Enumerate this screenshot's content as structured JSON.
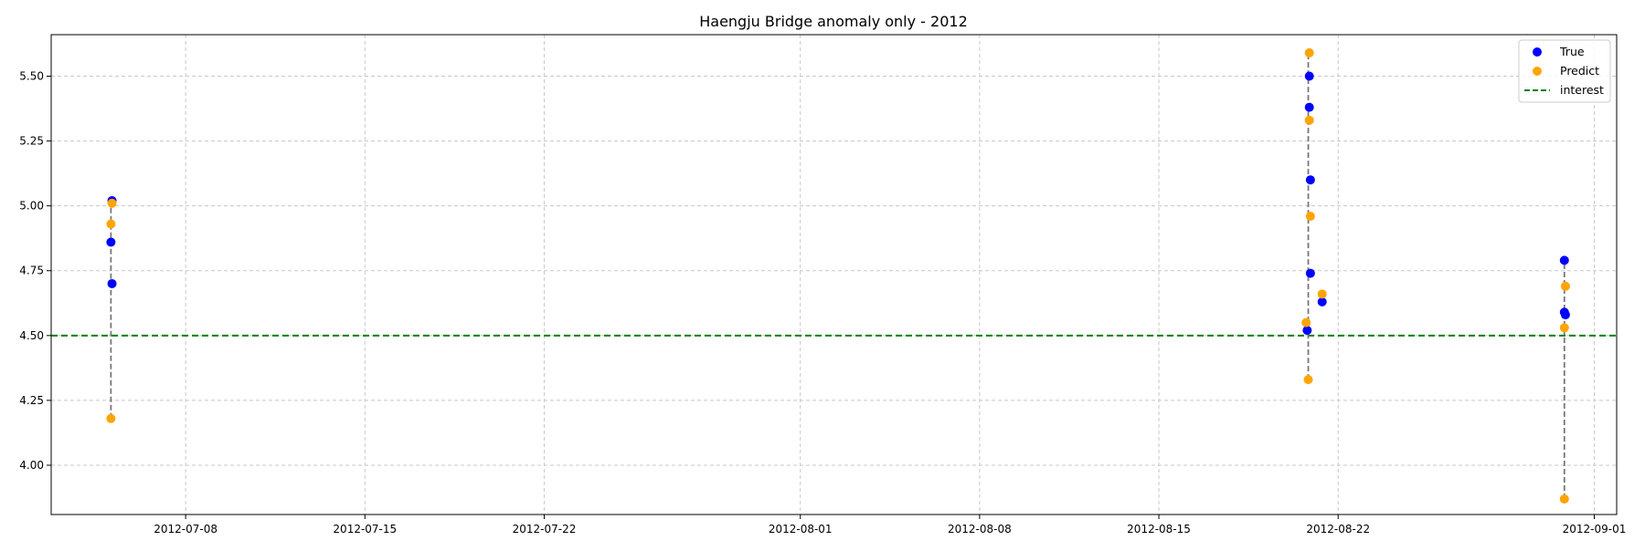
{
  "chart_data": {
    "type": "scatter",
    "title": "Haengju Bridge anomaly only - 2012",
    "xlabel": "",
    "ylabel": "",
    "x_axis": {
      "type": "date",
      "range": [
        "2012-07-02T18:00",
        "2012-09-01T21:00"
      ],
      "ticks": [
        "2012-07-08",
        "2012-07-15",
        "2012-07-22",
        "2012-08-01",
        "2012-08-08",
        "2012-08-15",
        "2012-08-22",
        "2012-09-01"
      ]
    },
    "y_axis": {
      "range": [
        3.81,
        5.66
      ],
      "ticks": [
        4.0,
        4.25,
        4.5,
        4.75,
        5.0,
        5.25,
        5.5
      ],
      "tick_labels": [
        "4.00",
        "4.25",
        "4.50",
        "4.75",
        "5.00",
        "5.25",
        "5.50"
      ]
    },
    "grid": true,
    "legend_position": "top-right",
    "series": [
      {
        "name": "True",
        "color": "#0000ff",
        "points": [
          {
            "x": "2012-07-05T03:00",
            "y": 5.02
          },
          {
            "x": "2012-07-05T02:00",
            "y": 4.86
          },
          {
            "x": "2012-07-05T03:00",
            "y": 4.7
          },
          {
            "x": "2012-08-20T21:00",
            "y": 5.5
          },
          {
            "x": "2012-08-20T21:00",
            "y": 5.38
          },
          {
            "x": "2012-08-20T22:00",
            "y": 5.1
          },
          {
            "x": "2012-08-20T22:00",
            "y": 4.74
          },
          {
            "x": "2012-08-21T09:00",
            "y": 4.63
          },
          {
            "x": "2012-08-20T19:00",
            "y": 4.52
          },
          {
            "x": "2012-08-30T20:00",
            "y": 4.79
          },
          {
            "x": "2012-08-30T20:00",
            "y": 4.59
          },
          {
            "x": "2012-08-30T21:00",
            "y": 4.58
          }
        ]
      },
      {
        "name": "Predict",
        "color": "#ffa500",
        "points": [
          {
            "x": "2012-07-05T03:00",
            "y": 5.01
          },
          {
            "x": "2012-07-05T02:00",
            "y": 4.93
          },
          {
            "x": "2012-07-05T02:00",
            "y": 4.18
          },
          {
            "x": "2012-08-20T21:00",
            "y": 5.59
          },
          {
            "x": "2012-08-20T21:00",
            "y": 5.33
          },
          {
            "x": "2012-08-20T22:00",
            "y": 4.96
          },
          {
            "x": "2012-08-21T09:00",
            "y": 4.66
          },
          {
            "x": "2012-08-20T18:00",
            "y": 4.55
          },
          {
            "x": "2012-08-20T20:00",
            "y": 4.33
          },
          {
            "x": "2012-08-30T21:00",
            "y": 4.69
          },
          {
            "x": "2012-08-30T20:00",
            "y": 4.53
          },
          {
            "x": "2012-08-30T20:00",
            "y": 3.87
          }
        ]
      }
    ],
    "connectors": [
      {
        "x": "2012-07-05T02:00",
        "y_from": 4.18,
        "y_to": 5.02
      },
      {
        "x": "2012-08-20T20:00",
        "y_from": 4.33,
        "y_to": 5.59
      },
      {
        "x": "2012-08-30T20:00",
        "y_from": 3.87,
        "y_to": 4.79
      }
    ],
    "reference_line": {
      "name": "interest",
      "y": 4.5,
      "color": "#008000",
      "style": "dashed"
    }
  }
}
